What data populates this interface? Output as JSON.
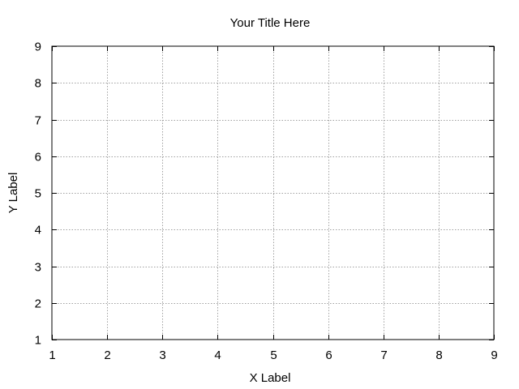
{
  "chart_data": {
    "type": "line",
    "title": "Your Title Here",
    "xlabel": "X Label",
    "ylabel": "Y Label",
    "xlim": [
      1,
      9
    ],
    "ylim": [
      1,
      9
    ],
    "xticks": [
      "1",
      "2",
      "3",
      "4",
      "5",
      "6",
      "7",
      "8",
      "9"
    ],
    "yticks": [
      "1",
      "2",
      "3",
      "4",
      "5",
      "6",
      "7",
      "8",
      "9"
    ],
    "grid": true,
    "series": [],
    "colors": {
      "grid": "#a0a0a0",
      "axis": "#000000",
      "background": "#ffffff"
    }
  }
}
